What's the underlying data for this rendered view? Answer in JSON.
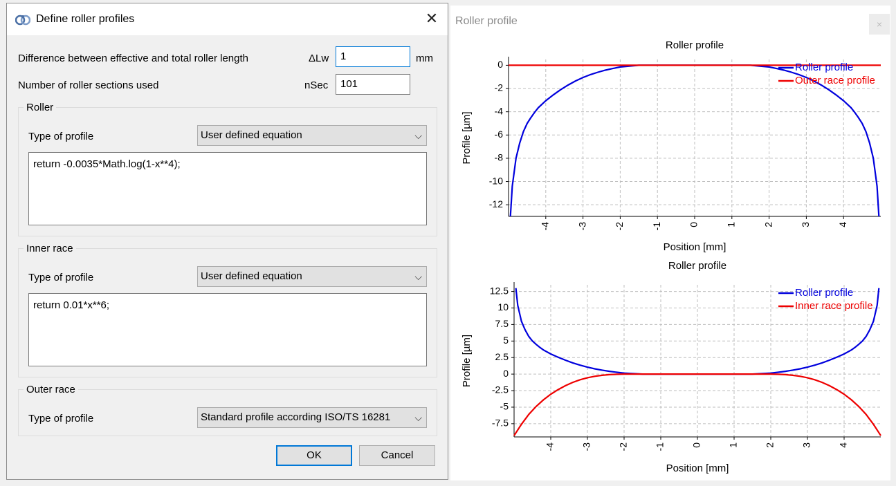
{
  "dialog": {
    "title": "Define roller profiles",
    "close_glyph": "✕",
    "diff_label": "Difference between effective and total roller length",
    "diff_symbol": "ΔLw",
    "diff_value": "1",
    "diff_unit": "mm",
    "nsec_label": "Number of roller sections used",
    "nsec_symbol": "nSec",
    "nsec_value": "101",
    "roller": {
      "group_title": "Roller",
      "type_label": "Type of profile",
      "type_value": "User defined equation",
      "equation": "return -0.0035*Math.log(1-x**4);"
    },
    "inner": {
      "group_title": "Inner race",
      "type_label": "Type of profile",
      "type_value": "User defined equation",
      "equation": "return 0.01*x**6;"
    },
    "outer": {
      "group_title": "Outer race",
      "type_label": "Type of profile",
      "type_value": "Standard profile according ISO/TS 16281"
    },
    "ok_label": "OK",
    "cancel_label": "Cancel"
  },
  "plot_window": {
    "title": "Roller profile",
    "close_glyph": "×"
  },
  "colors": {
    "roller": "#0000dd",
    "race": "#ee0000",
    "grid": "#bdbdbd"
  },
  "chart_data": [
    {
      "type": "line",
      "title": "Roller profile",
      "xlabel": "Position [mm]",
      "ylabel": "Profile [µm]",
      "xlim": [
        -5,
        5
      ],
      "ylim": [
        -13,
        0.5
      ],
      "xticks": [
        -4,
        -3,
        -2,
        -1,
        0,
        1,
        2,
        3,
        4
      ],
      "xtick_labels": [
        "-4",
        "-3",
        "-2",
        "-1",
        "0",
        "1",
        "2",
        "3",
        "4"
      ],
      "yticks": [
        0,
        -2,
        -4,
        -6,
        -8,
        -10,
        -12
      ],
      "ytick_labels": [
        "0",
        "-2",
        "-4",
        "-6",
        "-8",
        "-10",
        "-12"
      ],
      "grid": true,
      "legend_position": "top-right",
      "series": [
        {
          "name": "Roller profile",
          "color": "#0000dd",
          "x": [
            -4.95,
            -4.9,
            -4.8,
            -4.7,
            -4.6,
            -4.5,
            -4.4,
            -4.3,
            -4.2,
            -4.0,
            -3.8,
            -3.6,
            -3.4,
            -3.2,
            -3.0,
            -2.8,
            -2.6,
            -2.4,
            -2.2,
            -2.0,
            -1.5,
            -1.0,
            0,
            1.0,
            1.5,
            2.0,
            2.2,
            2.4,
            2.6,
            2.8,
            3.0,
            3.2,
            3.4,
            3.6,
            3.8,
            4.0,
            4.2,
            4.3,
            4.4,
            4.5,
            4.6,
            4.7,
            4.8,
            4.9,
            4.95
          ],
          "y": [
            -13.0,
            -10.4,
            -8.0,
            -6.7,
            -5.7,
            -5.0,
            -4.5,
            -4.05,
            -3.65,
            -3.05,
            -2.55,
            -2.1,
            -1.7,
            -1.35,
            -1.05,
            -0.8,
            -0.6,
            -0.42,
            -0.28,
            -0.15,
            0,
            0,
            0,
            0,
            0,
            -0.15,
            -0.28,
            -0.42,
            -0.6,
            -0.8,
            -1.05,
            -1.35,
            -1.7,
            -2.1,
            -2.55,
            -3.05,
            -3.65,
            -4.05,
            -4.5,
            -5.0,
            -5.7,
            -6.7,
            -8.0,
            -10.4,
            -13.0
          ]
        },
        {
          "name": "Outer race profile",
          "color": "#ee0000",
          "x": [
            -5,
            5
          ],
          "y": [
            0,
            0
          ]
        }
      ]
    },
    {
      "type": "line",
      "title": "Roller profile",
      "xlabel": "Position [mm]",
      "ylabel": "Profile [µm]",
      "xlim": [
        -5,
        5
      ],
      "ylim": [
        -9.5,
        13.5
      ],
      "xticks": [
        -4,
        -3,
        -2,
        -1,
        0,
        1,
        2,
        3,
        4
      ],
      "xtick_labels": [
        "-4",
        "-3",
        "-2",
        "-1",
        "0",
        "1",
        "2",
        "3",
        "4"
      ],
      "yticks": [
        12.5,
        10,
        7.5,
        5,
        2.5,
        0,
        -2.5,
        -5,
        -7.5
      ],
      "ytick_labels": [
        "12.5",
        "10",
        "7.5",
        "5",
        "2.5",
        "0",
        "-2.5",
        "-5",
        "-7.5"
      ],
      "grid": true,
      "legend_position": "top-right",
      "series": [
        {
          "name": "Roller profile",
          "color": "#0000dd",
          "x": [
            -4.95,
            -4.9,
            -4.8,
            -4.7,
            -4.6,
            -4.5,
            -4.4,
            -4.3,
            -4.2,
            -4.0,
            -3.8,
            -3.6,
            -3.4,
            -3.2,
            -3.0,
            -2.8,
            -2.6,
            -2.4,
            -2.2,
            -2.0,
            -1.5,
            -1.0,
            0,
            1.0,
            1.5,
            2.0,
            2.2,
            2.4,
            2.6,
            2.8,
            3.0,
            3.2,
            3.4,
            3.6,
            3.8,
            4.0,
            4.2,
            4.3,
            4.4,
            4.5,
            4.6,
            4.7,
            4.8,
            4.9,
            4.95
          ],
          "y": [
            13.0,
            10.4,
            8.0,
            6.7,
            5.7,
            5.0,
            4.5,
            4.05,
            3.65,
            3.05,
            2.55,
            2.1,
            1.7,
            1.35,
            1.05,
            0.8,
            0.6,
            0.42,
            0.28,
            0.15,
            0,
            0,
            0,
            0,
            0,
            0.15,
            0.28,
            0.42,
            0.6,
            0.8,
            1.05,
            1.35,
            1.7,
            2.1,
            2.55,
            3.05,
            3.65,
            4.05,
            4.5,
            5.0,
            5.7,
            6.7,
            8.0,
            10.4,
            13.0
          ]
        },
        {
          "name": "Inner race profile",
          "color": "#ee0000",
          "x": [
            -5.0,
            -4.8,
            -4.6,
            -4.4,
            -4.2,
            -4.0,
            -3.8,
            -3.6,
            -3.4,
            -3.2,
            -3.0,
            -2.8,
            -2.6,
            -2.4,
            -2.2,
            -2.0,
            -1.5,
            -1.0,
            0,
            1.0,
            1.5,
            2.0,
            2.2,
            2.4,
            2.6,
            2.8,
            3.0,
            3.2,
            3.4,
            3.6,
            3.8,
            4.0,
            4.2,
            4.4,
            4.6,
            4.8,
            5.0
          ],
          "y": [
            -9.3,
            -7.6,
            -6.1,
            -4.9,
            -3.9,
            -3.05,
            -2.35,
            -1.75,
            -1.25,
            -0.85,
            -0.55,
            -0.33,
            -0.18,
            -0.08,
            -0.03,
            0,
            0,
            0,
            0,
            0,
            0,
            0,
            -0.03,
            -0.08,
            -0.18,
            -0.33,
            -0.55,
            -0.85,
            -1.25,
            -1.75,
            -2.35,
            -3.05,
            -3.9,
            -4.9,
            -6.1,
            -7.6,
            -9.3
          ]
        }
      ]
    }
  ]
}
